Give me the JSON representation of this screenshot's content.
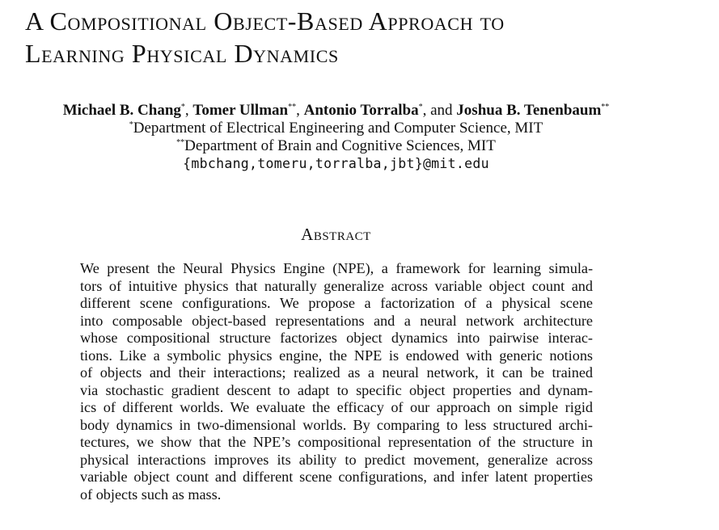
{
  "title": {
    "line1": "A Compositional Object-Based Approach to",
    "line2": "Learning Physical Dynamics"
  },
  "authors": [
    {
      "name": "Michael B. Chang",
      "mark": "*"
    },
    {
      "name": "Tomer Ullman",
      "mark": "**"
    },
    {
      "name": "Antonio Torralba",
      "mark": "*"
    },
    {
      "name": "Joshua B. Tenenbaum",
      "mark": "**"
    }
  ],
  "author_separators": [
    ", ",
    ", ",
    ", and "
  ],
  "affiliations": [
    {
      "mark": "*",
      "text": "Department of Electrical Engineering and Computer Science, MIT"
    },
    {
      "mark": "**",
      "text": "Department of Brain and Cognitive Sciences, MIT"
    }
  ],
  "email": "{mbchang,tomeru,torralba,jbt}@mit.edu",
  "abstract_heading": "Abstract",
  "abstract_lines": [
    "We present the Neural Physics Engine (NPE), a framework for learning simula-",
    "tors of intuitive physics that naturally generalize across variable object count and",
    "different scene configurations. We propose a factorization of a physical scene",
    "into composable object-based representations and a neural network architecture",
    "whose compositional structure factorizes object dynamics into pairwise interac-",
    "tions. Like a symbolic physics engine, the NPE is endowed with generic notions",
    "of objects and their interactions; realized as a neural network, it can be trained",
    "via stochastic gradient descent to adapt to specific object properties and dynam-",
    "ics of different worlds. We evaluate the efficacy of our approach on simple rigid",
    "body dynamics in two-dimensional worlds. By comparing to less structured archi-",
    "tectures, we show that the NPE’s compositional representation of the structure in",
    "physical interactions improves its ability to predict movement, generalize across",
    "variable object count and different scene configurations, and infer latent properties",
    "of objects such as mass."
  ]
}
